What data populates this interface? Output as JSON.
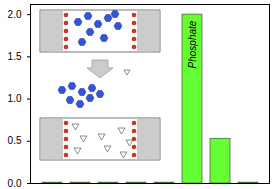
{
  "chart_data": {
    "type": "bar",
    "categories": [
      null,
      null,
      null,
      null,
      null,
      null,
      null,
      null
    ],
    "values": [
      0.01,
      0.01,
      0.01,
      0.01,
      0.01,
      2.0,
      0.53,
      0.01
    ],
    "color": "#66ff33",
    "ylim": [
      0,
      2.12
    ],
    "yticks": [
      {
        "value": 0,
        "label": "0.0"
      },
      {
        "value": 0.5,
        "label": "0.5"
      },
      {
        "value": 1,
        "label": "1.0"
      },
      {
        "value": 1.5,
        "label": "1.5"
      },
      {
        "value": 2,
        "label": "2.0"
      }
    ],
    "tick_labels": "y",
    "annotations": [
      {
        "text": "Phosphate",
        "x": 5
      }
    ]
  }
}
